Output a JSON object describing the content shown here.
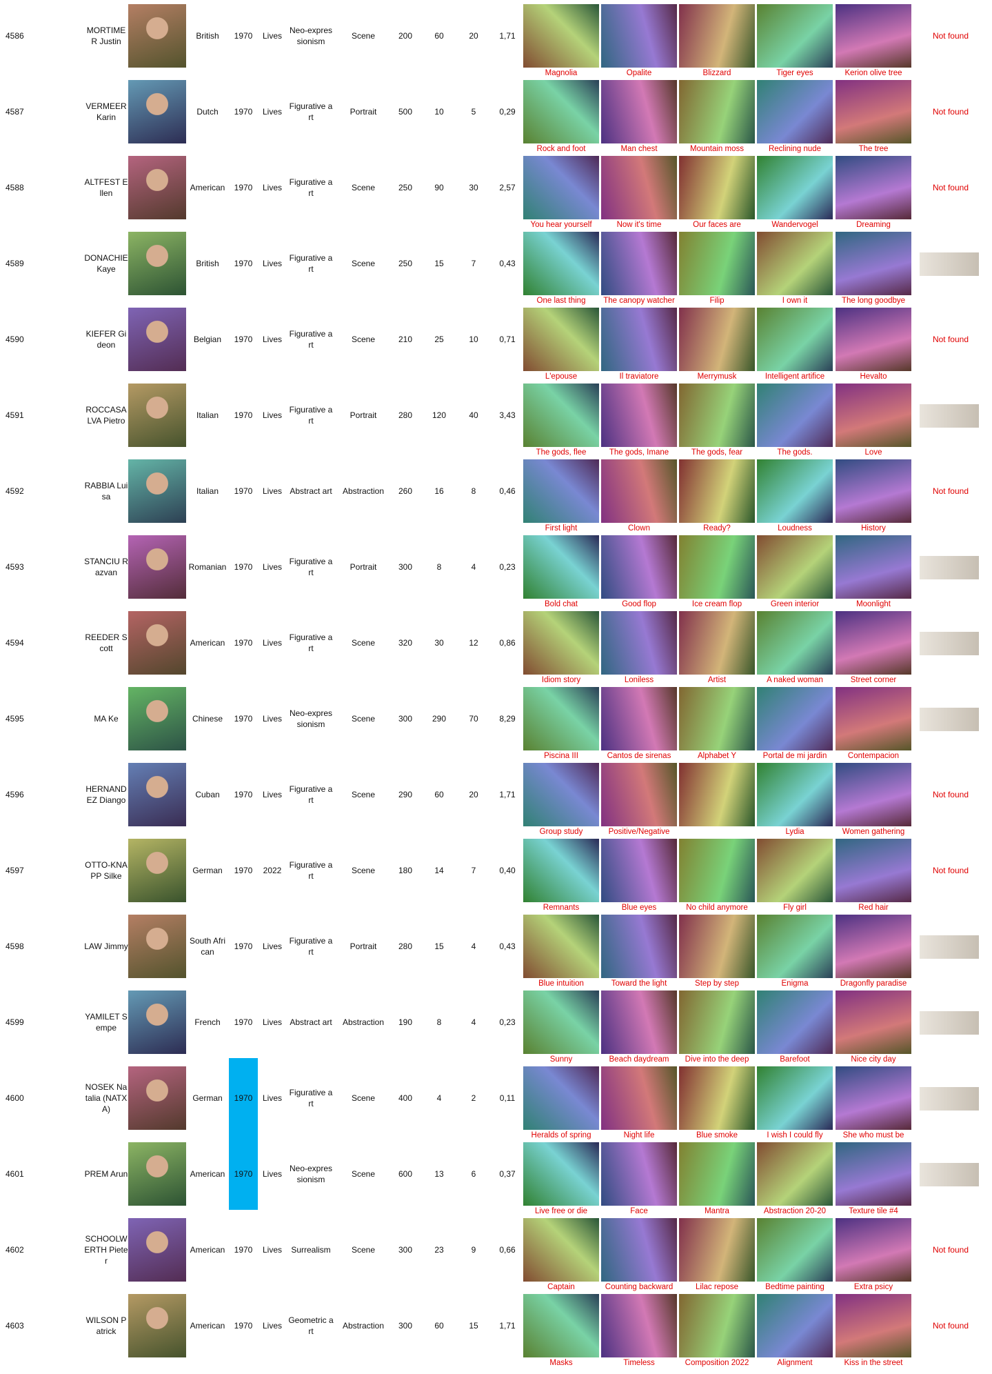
{
  "artists": [
    {
      "id": 4586,
      "name": "MORTIMER Justin",
      "nationality": "British",
      "birth": 1970,
      "death": "Lives",
      "movement": "Neo-expressionism",
      "genre": "Scene",
      "price": 200,
      "count_a": 60,
      "count_b": 20,
      "ratio": "1,71",
      "works": [
        "Magnolia",
        "Opalite",
        "Blizzard",
        "Tiger eyes",
        "Kerion olive tree"
      ],
      "signature": "Not found"
    },
    {
      "id": 4587,
      "name": "VERMEER Karin",
      "nationality": "Dutch",
      "birth": 1970,
      "death": "Lives",
      "movement": "Figurative art",
      "genre": "Portrait",
      "price": 500,
      "count_a": 10,
      "count_b": 5,
      "ratio": "0,29",
      "works": [
        "Rock and foot",
        "Man chest",
        "Mountain moss",
        "Reclining nude",
        "The tree"
      ],
      "signature": "Not found"
    },
    {
      "id": 4588,
      "name": "ALTFEST Ellen",
      "nationality": "American",
      "birth": 1970,
      "death": "Lives",
      "movement": "Figurative art",
      "genre": "Scene",
      "price": 250,
      "count_a": 90,
      "count_b": 30,
      "ratio": "2,57",
      "works": [
        "You hear yourself",
        "Now it's time",
        "Our faces are",
        "Wandervogel",
        "Dreaming"
      ],
      "signature": "Not found"
    },
    {
      "id": 4589,
      "name": "DONACHIE Kaye",
      "nationality": "British",
      "birth": 1970,
      "death": "Lives",
      "movement": "Figurative art",
      "genre": "Scene",
      "price": 250,
      "count_a": 15,
      "count_b": 7,
      "ratio": "0,43",
      "works": [
        "One last thing",
        "The canopy watcher",
        "Filip",
        "I own it",
        "The long goodbye"
      ]
    },
    {
      "id": 4590,
      "name": "KIEFER Gideon",
      "nationality": "Belgian",
      "birth": 1970,
      "death": "Lives",
      "movement": "Figurative art",
      "genre": "Scene",
      "price": 210,
      "count_a": 25,
      "count_b": 10,
      "ratio": "0,71",
      "works": [
        "L'epouse",
        "Il traviatore",
        "Merrymusk",
        "Intelligent artifice",
        "Hevalto"
      ],
      "signature": "Not found"
    },
    {
      "id": 4591,
      "name": "ROCCASALVA Pietro",
      "nationality": "Italian",
      "birth": 1970,
      "death": "Lives",
      "movement": "Figurative art",
      "genre": "Portrait",
      "price": 280,
      "count_a": 120,
      "count_b": 40,
      "ratio": "3,43",
      "works": [
        "The gods, flee",
        "The gods, Imane",
        "The gods, fear",
        "The gods.",
        "Love"
      ]
    },
    {
      "id": 4592,
      "name": "RABBIA Luisa",
      "nationality": "Italian",
      "birth": 1970,
      "death": "Lives",
      "movement": "Abstract art",
      "genre": "Abstraction",
      "price": 260,
      "count_a": 16,
      "count_b": 8,
      "ratio": "0,46",
      "works": [
        "First light",
        "Clown",
        "Ready?",
        "Loudness",
        "History"
      ],
      "signature": "Not found"
    },
    {
      "id": 4593,
      "name": "STANCIU Razvan",
      "nationality": "Romanian",
      "birth": 1970,
      "death": "Lives",
      "movement": "Figurative art",
      "genre": "Portrait",
      "price": 300,
      "count_a": 8,
      "count_b": 4,
      "ratio": "0,23",
      "works": [
        "Bold chat",
        "Good flop",
        "Ice cream flop",
        "Green interior",
        "Moonlight"
      ]
    },
    {
      "id": 4594,
      "name": "REEDER Scott",
      "nationality": "American",
      "birth": 1970,
      "death": "Lives",
      "movement": "Figurative art",
      "genre": "Scene",
      "price": 320,
      "count_a": 30,
      "count_b": 12,
      "ratio": "0,86",
      "works": [
        "Idiom story",
        "Loniless",
        "Artist",
        "A naked woman",
        "Street corner"
      ]
    },
    {
      "id": 4595,
      "name": "MA Ke",
      "nationality": "Chinese",
      "birth": 1970,
      "death": "Lives",
      "movement": "Neo-expressionism",
      "genre": "Scene",
      "price": 300,
      "count_a": 290,
      "count_b": 70,
      "ratio": "8,29",
      "works": [
        "Piscina III",
        "Cantos de sirenas",
        "Alphabet Y",
        "Portal de mi jardin",
        "Contempacion"
      ]
    },
    {
      "id": 4596,
      "name": "HERNANDEZ Diango",
      "nationality": "Cuban",
      "birth": 1970,
      "death": "Lives",
      "movement": "Figurative art",
      "genre": "Scene",
      "price": 290,
      "count_a": 60,
      "count_b": 20,
      "ratio": "1,71",
      "works": [
        "Group study",
        "Positive/Negative",
        null,
        "Lydia",
        "Women gathering"
      ],
      "signature": "Not found"
    },
    {
      "id": 4597,
      "name": "OTTO-KNAPP Silke",
      "nationality": "German",
      "birth": 1970,
      "death": 2022,
      "movement": "Figurative art",
      "genre": "Scene",
      "price": 180,
      "count_a": 14,
      "count_b": 7,
      "ratio": "0,40",
      "works": [
        "Remnants",
        "Blue eyes",
        "No child anymore",
        "Fly girl",
        "Red hair"
      ],
      "signature": "Not found"
    },
    {
      "id": 4598,
      "name": "LAW Jimmy",
      "nationality": "South African",
      "birth": 1970,
      "death": "Lives",
      "movement": "Figurative art",
      "genre": "Portrait",
      "price": 280,
      "count_a": 15,
      "count_b": 4,
      "ratio": "0,43",
      "works": [
        "Blue intuition",
        "Toward the light",
        "Step by step",
        "Enigma",
        "Dragonfly paradise"
      ]
    },
    {
      "id": 4599,
      "name": "YAMILET Sempe",
      "nationality": "French",
      "birth": 1970,
      "death": "Lives",
      "movement": "Abstract art",
      "genre": "Abstraction",
      "price": 190,
      "count_a": 8,
      "count_b": 4,
      "ratio": "0,23",
      "works": [
        "Sunny",
        "Beach daydream",
        "Dive into the deep",
        "Barefoot",
        "Nice city day"
      ]
    },
    {
      "id": 4600,
      "name": "NOSEK Natalia (NATXA)",
      "nationality": "German",
      "birth": 1970,
      "death": "Lives",
      "movement": "Figurative art",
      "genre": "Scene",
      "price": 400,
      "count_a": 4,
      "count_b": 2,
      "ratio": "0,11",
      "works": [
        "Heralds of spring",
        "Night life",
        "Blue smoke",
        "I wish I could fly",
        "She who must be"
      ]
    },
    {
      "id": 4601,
      "name": "PREM Arun",
      "nationality": "American",
      "birth": 1970,
      "death": "Lives",
      "movement": "Neo-expressionism",
      "genre": "Scene",
      "price": 600,
      "count_a": 13,
      "count_b": 6,
      "ratio": "0,37",
      "works": [
        "Live free or die",
        "Face",
        "Mantra",
        "Abstraction 20-20",
        "Texture tile #4"
      ]
    },
    {
      "id": 4602,
      "name": "SCHOOLWERTH Pieter",
      "nationality": "American",
      "birth": 1970,
      "death": "Lives",
      "movement": "Surrealism",
      "genre": "Scene",
      "price": 300,
      "count_a": 23,
      "count_b": 9,
      "ratio": "0,66",
      "works": [
        "Captain",
        "Counting backward",
        "Lilac repose",
        "Bedtime painting",
        "Extra psicy"
      ],
      "signature": "Not found"
    },
    {
      "id": 4603,
      "name": "WILSON Patrick",
      "nationality": "American",
      "birth": 1970,
      "death": "Lives",
      "movement": "Geometric art",
      "genre": "Abstraction",
      "price": 300,
      "count_a": 60,
      "count_b": 15,
      "ratio": "1,71",
      "works": [
        "Masks",
        "Timeless",
        "Composition 2022",
        "Alignment",
        "Kiss in the street"
      ],
      "signature": "Not found"
    }
  ]
}
